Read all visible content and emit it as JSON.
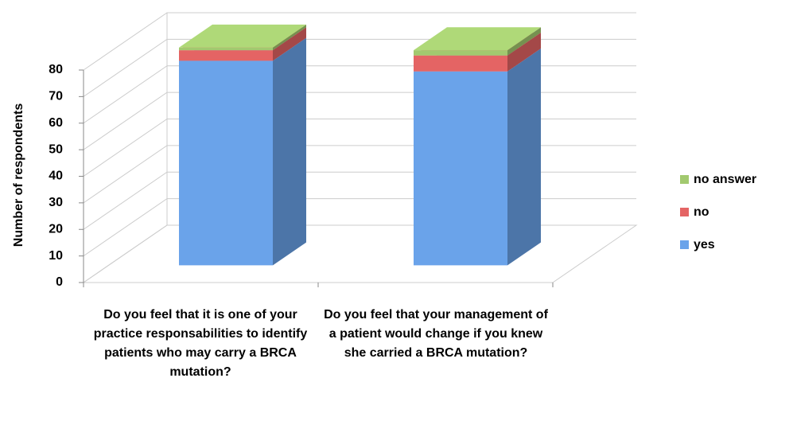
{
  "chart_data": {
    "type": "bar3d_stacked",
    "y_label": "Number of respondents",
    "categories": [
      "Do you feel that it is one of your practice responsabilities to identify patients who may carry a BRCA mutation?",
      "Do you feel that your management of a patient would change if you knew she carried a BRCA mutation?"
    ],
    "series": [
      {
        "name": "yes",
        "color": "#6aa3ea",
        "values": [
          77,
          73
        ]
      },
      {
        "name": "no",
        "color": "#e46464",
        "values": [
          4,
          6
        ]
      },
      {
        "name": "no answer",
        "color": "#a2c96f",
        "values": [
          1,
          2
        ]
      }
    ],
    "ylim": [
      0,
      80
    ],
    "yticks": [
      0,
      10,
      20,
      30,
      40,
      50,
      60,
      70,
      80
    ],
    "grid": true,
    "legend": "right"
  }
}
